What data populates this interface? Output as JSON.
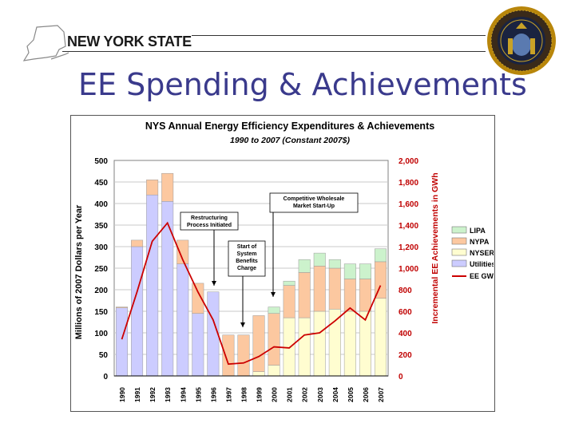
{
  "header": {
    "state_name": "NEW YORK STATE",
    "title": "EE Spending & Achievements"
  },
  "colors": {
    "title": "#3a3a8c",
    "lipa": "#ccf2cc",
    "nypa": "#fcc8a0",
    "nyserda": "#fffdd0",
    "utilities": "#ccccff",
    "ee_gwh": "#cc0000"
  },
  "chart_data": {
    "type": "bar",
    "stacked": true,
    "title": "NYS Annual Energy Efficiency Expenditures & Achievements",
    "subtitle": "1990 to 2007 (Constant 2007$)",
    "ylabel": "Millions of 2007 Dollars per Year",
    "y2label": "Incremental EE Achievements in GWh",
    "ylim": [
      0,
      500
    ],
    "y2lim": [
      0,
      2000
    ],
    "yticks": [
      "0",
      "50",
      "100",
      "150",
      "200",
      "250",
      "300",
      "350",
      "400",
      "450",
      "500"
    ],
    "y2ticks": [
      "0",
      "200",
      "400",
      "600",
      "800",
      "1,000",
      "1,200",
      "1,400",
      "1,600",
      "1,800",
      "2,000"
    ],
    "legend_position": "right",
    "categories": [
      "1990",
      "1991",
      "1992",
      "1993",
      "1994",
      "1995",
      "1996",
      "1997",
      "1998",
      "1999",
      "2000",
      "2001",
      "2002",
      "2003",
      "2004",
      "2005",
      "2006",
      "2007"
    ],
    "series": [
      {
        "name": "Utilities",
        "values": [
          158,
          300,
          420,
          405,
          260,
          145,
          195,
          0,
          0,
          0,
          0,
          0,
          0,
          0,
          0,
          0,
          0,
          0
        ]
      },
      {
        "name": "NYSERDA",
        "values": [
          0,
          0,
          0,
          0,
          0,
          0,
          0,
          0,
          0,
          10,
          25,
          135,
          135,
          150,
          155,
          150,
          150,
          180
        ]
      },
      {
        "name": "NYPA",
        "values": [
          2,
          15,
          35,
          65,
          55,
          70,
          0,
          95,
          95,
          130,
          120,
          75,
          105,
          105,
          95,
          75,
          75,
          85
        ]
      },
      {
        "name": "LIPA",
        "values": [
          0,
          0,
          0,
          0,
          0,
          0,
          0,
          0,
          0,
          0,
          15,
          10,
          30,
          30,
          20,
          35,
          35,
          30
        ]
      }
    ],
    "line": {
      "name": "EE GWh",
      "axis": "right",
      "values": [
        340,
        780,
        1250,
        1420,
        1080,
        780,
        520,
        110,
        120,
        180,
        270,
        260,
        380,
        400,
        510,
        630,
        520,
        840
      ]
    },
    "annotations": [
      {
        "text_lines": [
          "Restructuring",
          "Process Initiated"
        ]
      },
      {
        "text_lines": [
          "Competitive Wholesale",
          "Market Start-Up"
        ]
      },
      {
        "text_lines": [
          "Start of",
          "System",
          "Benefits",
          "Charge"
        ]
      }
    ]
  }
}
